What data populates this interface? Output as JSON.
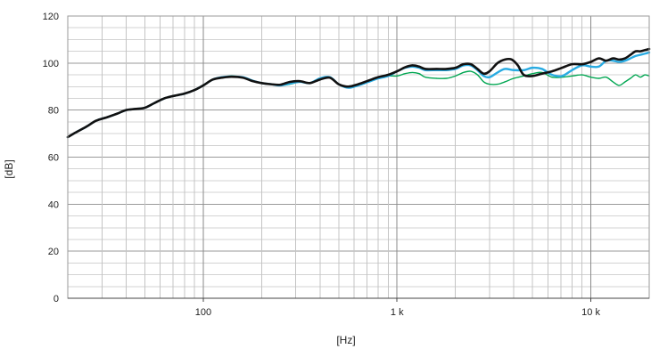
{
  "chart_data": {
    "type": "line",
    "xlabel": "[Hz]",
    "ylabel": "[dB]",
    "x_scale": "log",
    "xlim": [
      20,
      20000
    ],
    "ylim": [
      0,
      120
    ],
    "grid": true,
    "y_ticks": [
      0,
      20,
      40,
      60,
      80,
      100,
      120
    ],
    "x_ticks": [
      {
        "value": 100,
        "label": "100"
      },
      {
        "value": 1000,
        "label": "1 k"
      },
      {
        "value": 10000,
        "label": "10 k"
      }
    ],
    "series": [
      {
        "color": "#00a651",
        "points": [
          [
            20,
            68.5
          ],
          [
            22,
            70.5
          ],
          [
            25,
            73
          ],
          [
            28,
            75.5
          ],
          [
            32,
            77
          ],
          [
            36,
            78.5
          ],
          [
            40,
            80
          ],
          [
            45,
            80.5
          ],
          [
            50,
            81
          ],
          [
            56,
            83
          ],
          [
            63,
            85
          ],
          [
            70,
            86
          ],
          [
            80,
            87
          ],
          [
            90,
            88.5
          ],
          [
            100,
            90.5
          ],
          [
            112,
            93
          ],
          [
            125,
            94
          ],
          [
            140,
            94.5
          ],
          [
            160,
            94
          ],
          [
            180,
            92.5
          ],
          [
            200,
            91.5
          ],
          [
            224,
            91
          ],
          [
            250,
            90.5
          ],
          [
            280,
            91
          ],
          [
            315,
            92
          ],
          [
            355,
            91.5
          ],
          [
            400,
            93.5
          ],
          [
            450,
            94
          ],
          [
            500,
            91
          ],
          [
            560,
            89.5
          ],
          [
            630,
            90.5
          ],
          [
            710,
            92
          ],
          [
            800,
            93.5
          ],
          [
            900,
            94.5
          ],
          [
            1000,
            94.5
          ],
          [
            1100,
            95.5
          ],
          [
            1200,
            96
          ],
          [
            1300,
            95.5
          ],
          [
            1400,
            94
          ],
          [
            1600,
            93.5
          ],
          [
            1800,
            93.5
          ],
          [
            2000,
            94.5
          ],
          [
            2200,
            96
          ],
          [
            2400,
            96.5
          ],
          [
            2600,
            95
          ],
          [
            2800,
            92
          ],
          [
            3000,
            91
          ],
          [
            3300,
            91
          ],
          [
            3600,
            92
          ],
          [
            4000,
            93.5
          ],
          [
            4500,
            94.5
          ],
          [
            5000,
            95.5
          ],
          [
            5600,
            96
          ],
          [
            6300,
            94
          ],
          [
            7100,
            94
          ],
          [
            8000,
            94.5
          ],
          [
            9000,
            95
          ],
          [
            10000,
            94
          ],
          [
            11000,
            93.5
          ],
          [
            12000,
            94
          ],
          [
            13000,
            92
          ],
          [
            14000,
            90.5
          ],
          [
            15000,
            92
          ],
          [
            16000,
            93.5
          ],
          [
            17000,
            95
          ],
          [
            18000,
            94
          ],
          [
            19000,
            95
          ],
          [
            20000,
            94.5
          ]
        ]
      },
      {
        "color": "#29abe2",
        "points": [
          [
            20,
            68.5
          ],
          [
            22,
            70.5
          ],
          [
            25,
            73
          ],
          [
            28,
            75.5
          ],
          [
            32,
            77
          ],
          [
            36,
            78.5
          ],
          [
            40,
            80
          ],
          [
            45,
            80.5
          ],
          [
            50,
            81
          ],
          [
            56,
            83
          ],
          [
            63,
            85
          ],
          [
            70,
            86
          ],
          [
            80,
            87
          ],
          [
            90,
            88.5
          ],
          [
            100,
            90.5
          ],
          [
            112,
            93
          ],
          [
            125,
            94
          ],
          [
            140,
            94.3
          ],
          [
            160,
            94
          ],
          [
            180,
            92.5
          ],
          [
            200,
            91.5
          ],
          [
            224,
            91
          ],
          [
            250,
            90.5
          ],
          [
            280,
            91.3
          ],
          [
            315,
            92
          ],
          [
            355,
            91.5
          ],
          [
            400,
            93.5
          ],
          [
            450,
            94
          ],
          [
            500,
            91
          ],
          [
            560,
            89.5
          ],
          [
            630,
            90.5
          ],
          [
            710,
            92
          ],
          [
            800,
            93.5
          ],
          [
            900,
            94.5
          ],
          [
            1000,
            96.5
          ],
          [
            1100,
            98
          ],
          [
            1200,
            98.5
          ],
          [
            1300,
            98
          ],
          [
            1400,
            97
          ],
          [
            1600,
            97
          ],
          [
            1800,
            97
          ],
          [
            2000,
            97.5
          ],
          [
            2200,
            99
          ],
          [
            2400,
            99
          ],
          [
            2600,
            97
          ],
          [
            2800,
            94.5
          ],
          [
            3000,
            94
          ],
          [
            3300,
            96
          ],
          [
            3600,
            97.5
          ],
          [
            4000,
            97
          ],
          [
            4500,
            97
          ],
          [
            5000,
            98
          ],
          [
            5600,
            97.5
          ],
          [
            6300,
            95
          ],
          [
            7100,
            94.5
          ],
          [
            8000,
            97
          ],
          [
            9000,
            99
          ],
          [
            10000,
            98.5
          ],
          [
            11000,
            98.5
          ],
          [
            12000,
            101
          ],
          [
            13000,
            101
          ],
          [
            14000,
            100.5
          ],
          [
            15000,
            101
          ],
          [
            16000,
            102
          ],
          [
            17000,
            103
          ],
          [
            18000,
            103.5
          ],
          [
            19000,
            104
          ],
          [
            20000,
            104.5
          ]
        ]
      },
      {
        "color": "#111111",
        "points": [
          [
            20,
            68.5
          ],
          [
            22,
            70.5
          ],
          [
            25,
            73
          ],
          [
            28,
            75.5
          ],
          [
            32,
            77
          ],
          [
            36,
            78.5
          ],
          [
            40,
            80
          ],
          [
            45,
            80.5
          ],
          [
            50,
            81
          ],
          [
            56,
            83
          ],
          [
            63,
            85
          ],
          [
            70,
            86
          ],
          [
            80,
            87
          ],
          [
            90,
            88.5
          ],
          [
            100,
            90.5
          ],
          [
            112,
            93
          ],
          [
            125,
            93.8
          ],
          [
            140,
            94.2
          ],
          [
            160,
            93.8
          ],
          [
            180,
            92.3
          ],
          [
            200,
            91.5
          ],
          [
            224,
            91
          ],
          [
            250,
            90.8
          ],
          [
            280,
            92
          ],
          [
            315,
            92.3
          ],
          [
            355,
            91.5
          ],
          [
            400,
            93
          ],
          [
            450,
            93.8
          ],
          [
            500,
            91
          ],
          [
            560,
            90
          ],
          [
            630,
            91
          ],
          [
            710,
            92.5
          ],
          [
            800,
            94
          ],
          [
            900,
            95
          ],
          [
            1000,
            96.5
          ],
          [
            1100,
            98.2
          ],
          [
            1200,
            99
          ],
          [
            1300,
            98.5
          ],
          [
            1400,
            97.5
          ],
          [
            1600,
            97.5
          ],
          [
            1800,
            97.5
          ],
          [
            2000,
            98
          ],
          [
            2200,
            99.5
          ],
          [
            2400,
            99.5
          ],
          [
            2600,
            97.5
          ],
          [
            2800,
            95.5
          ],
          [
            3000,
            96.5
          ],
          [
            3300,
            100
          ],
          [
            3600,
            101.5
          ],
          [
            3900,
            101.5
          ],
          [
            4200,
            99
          ],
          [
            4500,
            95
          ],
          [
            5000,
            94.5
          ],
          [
            5600,
            95.5
          ],
          [
            6300,
            96.5
          ],
          [
            7100,
            98
          ],
          [
            8000,
            99.5
          ],
          [
            9000,
            99.5
          ],
          [
            10000,
            100.5
          ],
          [
            11000,
            102
          ],
          [
            12000,
            101
          ],
          [
            13000,
            102
          ],
          [
            14000,
            101.5
          ],
          [
            15000,
            102
          ],
          [
            16000,
            103.5
          ],
          [
            17000,
            105
          ],
          [
            18000,
            105
          ],
          [
            19000,
            105.5
          ],
          [
            20000,
            106
          ]
        ]
      }
    ]
  }
}
